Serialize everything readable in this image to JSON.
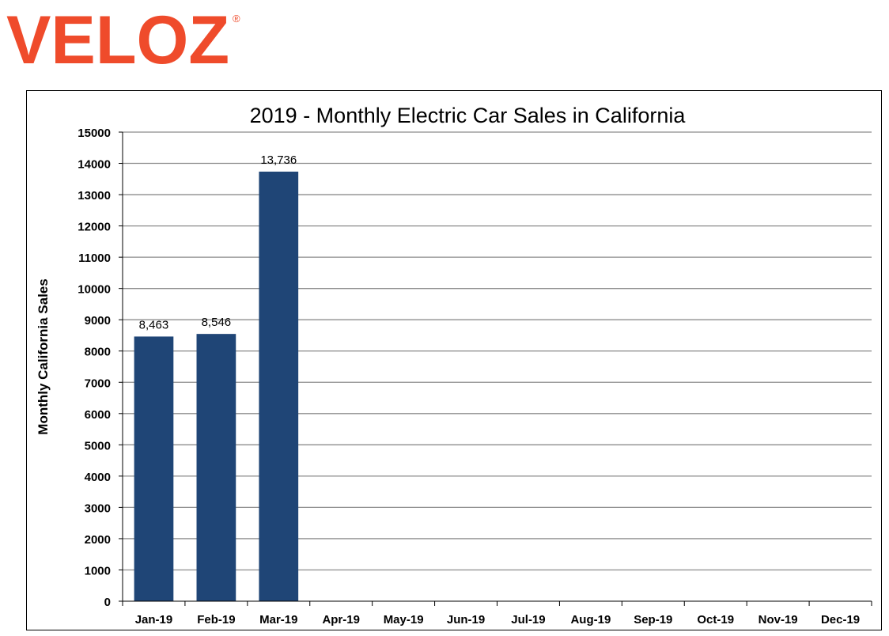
{
  "brand": {
    "name": "VELOZ",
    "trademark": "®",
    "color": "#ef4b2b"
  },
  "colors": {
    "bar": "#1f4576",
    "grid": "#8c8c8c",
    "axis": "#000000"
  },
  "chart_data": {
    "type": "bar",
    "title": "2019 - Monthly Electric Car Sales in California",
    "xlabel": "",
    "ylabel": "Monthly California Sales",
    "ylim": [
      0,
      15000
    ],
    "yticks": [
      0,
      1000,
      2000,
      3000,
      4000,
      5000,
      6000,
      7000,
      8000,
      9000,
      10000,
      11000,
      12000,
      13000,
      14000,
      15000
    ],
    "grid": true,
    "legend": "none",
    "categories": [
      "Jan-19",
      "Feb-19",
      "Mar-19",
      "Apr-19",
      "May-19",
      "Jun-19",
      "Jul-19",
      "Aug-19",
      "Sep-19",
      "Oct-19",
      "Nov-19",
      "Dec-19"
    ],
    "values": [
      8463,
      8546,
      13736,
      null,
      null,
      null,
      null,
      null,
      null,
      null,
      null,
      null
    ],
    "data_labels": [
      "8,463",
      "8,546",
      "13,736",
      "",
      "",
      "",
      "",
      "",
      "",
      "",
      "",
      ""
    ]
  }
}
